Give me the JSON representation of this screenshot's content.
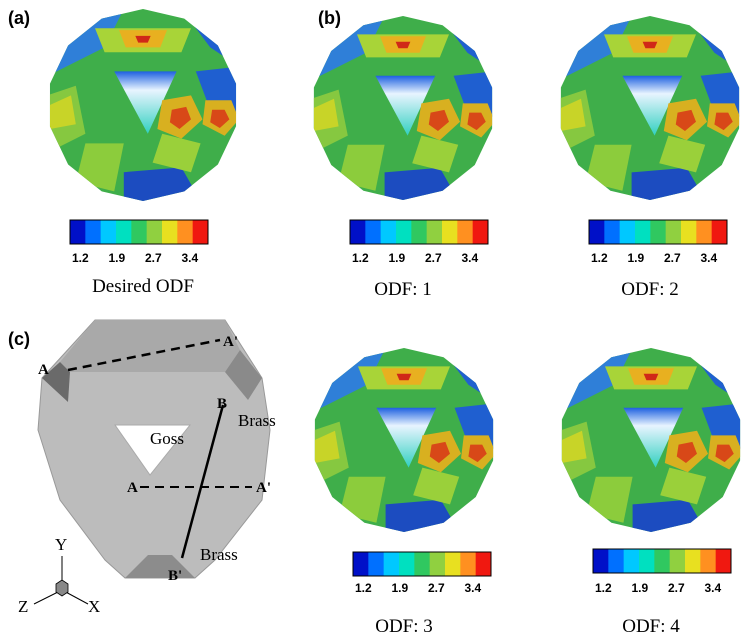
{
  "panels": [
    "(a)",
    "(b)",
    "(c)"
  ],
  "plots": [
    {
      "caption": "Desired ODF",
      "colorbar_ticks": [
        1.2,
        1.9,
        2.7,
        3.4
      ]
    },
    {
      "caption": "ODF: 1",
      "colorbar_ticks": [
        1.2,
        1.9,
        2.7,
        3.4
      ]
    },
    {
      "caption": "ODF: 2",
      "colorbar_ticks": [
        1.2,
        1.9,
        2.7,
        3.4
      ]
    },
    {
      "caption": "ODF: 3",
      "colorbar_ticks": [
        1.2,
        1.9,
        2.7,
        3.4
      ]
    },
    {
      "caption": "ODF: 4",
      "colorbar_ticks": [
        1.2,
        1.9,
        2.7,
        3.4
      ]
    }
  ],
  "diagram": {
    "labels": [
      "A",
      "A'",
      "B",
      "Brass",
      "Goss",
      "A",
      "A'",
      "Brass",
      "B'",
      "Y",
      "Z",
      "X"
    ]
  }
}
